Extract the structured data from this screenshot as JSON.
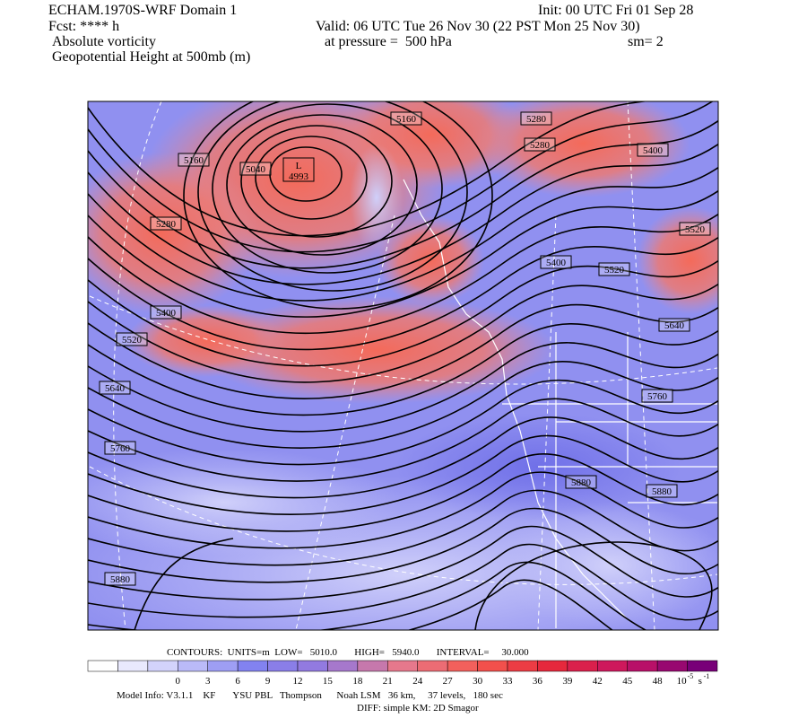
{
  "header": {
    "lines": [
      "ECHAM.1970S-WRF Domain 1",
      "Fcst: **** h",
      "Absolute vorticity",
      "Geopotential Height at 500mb (m)"
    ],
    "init": "Init: 00 UTC Fri 01 Sep 28",
    "valid": "Valid: 06 UTC Tue 26 Nov 30 (22 PST Mon 25 Nov 30)",
    "pressure": "at pressure =  500 hPa",
    "smoothing": "sm= 2"
  },
  "map": {
    "low_label": "L",
    "low_value": "4993",
    "contour_labels": [
      "5160",
      "5040",
      "5160",
      "5280",
      "5280",
      "5400",
      "5280",
      "5520",
      "5400",
      "5520",
      "5400",
      "5640",
      "5520",
      "5640",
      "5760",
      "5760",
      "5880",
      "5880",
      "5880"
    ]
  },
  "contour_info": "CONTOURS:  UNITS=m  LOW=   5010.0       HIGH=   5940.0       INTERVAL=     30.000",
  "colorbar": {
    "ticks": [
      "0",
      "3",
      "6",
      "9",
      "12",
      "15",
      "18",
      "21",
      "24",
      "27",
      "30",
      "33",
      "36",
      "39",
      "42",
      "45",
      "48"
    ],
    "unit": "10",
    "unit_exp": "-5",
    "unit_tail": "s",
    "unit_tail_exp": "-1"
  },
  "footer": [
    "Model Info: V3.1.1    KF       YSU PBL   Thompson      Noah LSM   36 km,     37 levels,   180 sec",
    "DIFF: simple KM: 2D Smagor"
  ]
}
